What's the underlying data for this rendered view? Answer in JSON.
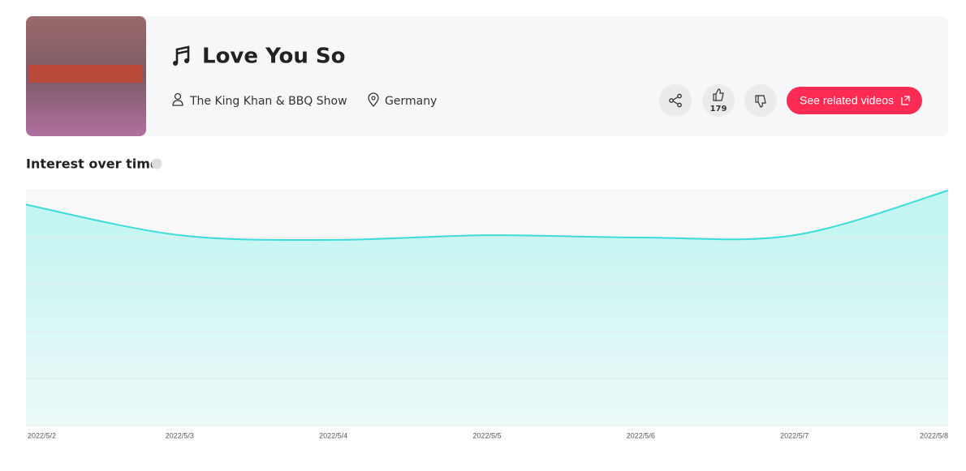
{
  "header": {
    "title": "Love You So",
    "artist": "The King Khan & BBQ Show",
    "location": "Germany",
    "likes": 179,
    "related_button": "See related videos"
  },
  "chart_data": {
    "type": "area",
    "title": "Interest over time",
    "x": [
      "2022/5/2",
      "2022/5/3",
      "2022/5/4",
      "2022/5/5",
      "2022/5/6",
      "2022/5/7",
      "2022/5/8"
    ],
    "values": [
      94,
      81,
      79,
      81,
      80,
      81,
      100
    ],
    "color": "#3ddbd9",
    "ylim": [
      0,
      100
    ],
    "yticks": [
      0,
      20,
      40,
      60,
      80,
      100
    ],
    "grid": true
  }
}
